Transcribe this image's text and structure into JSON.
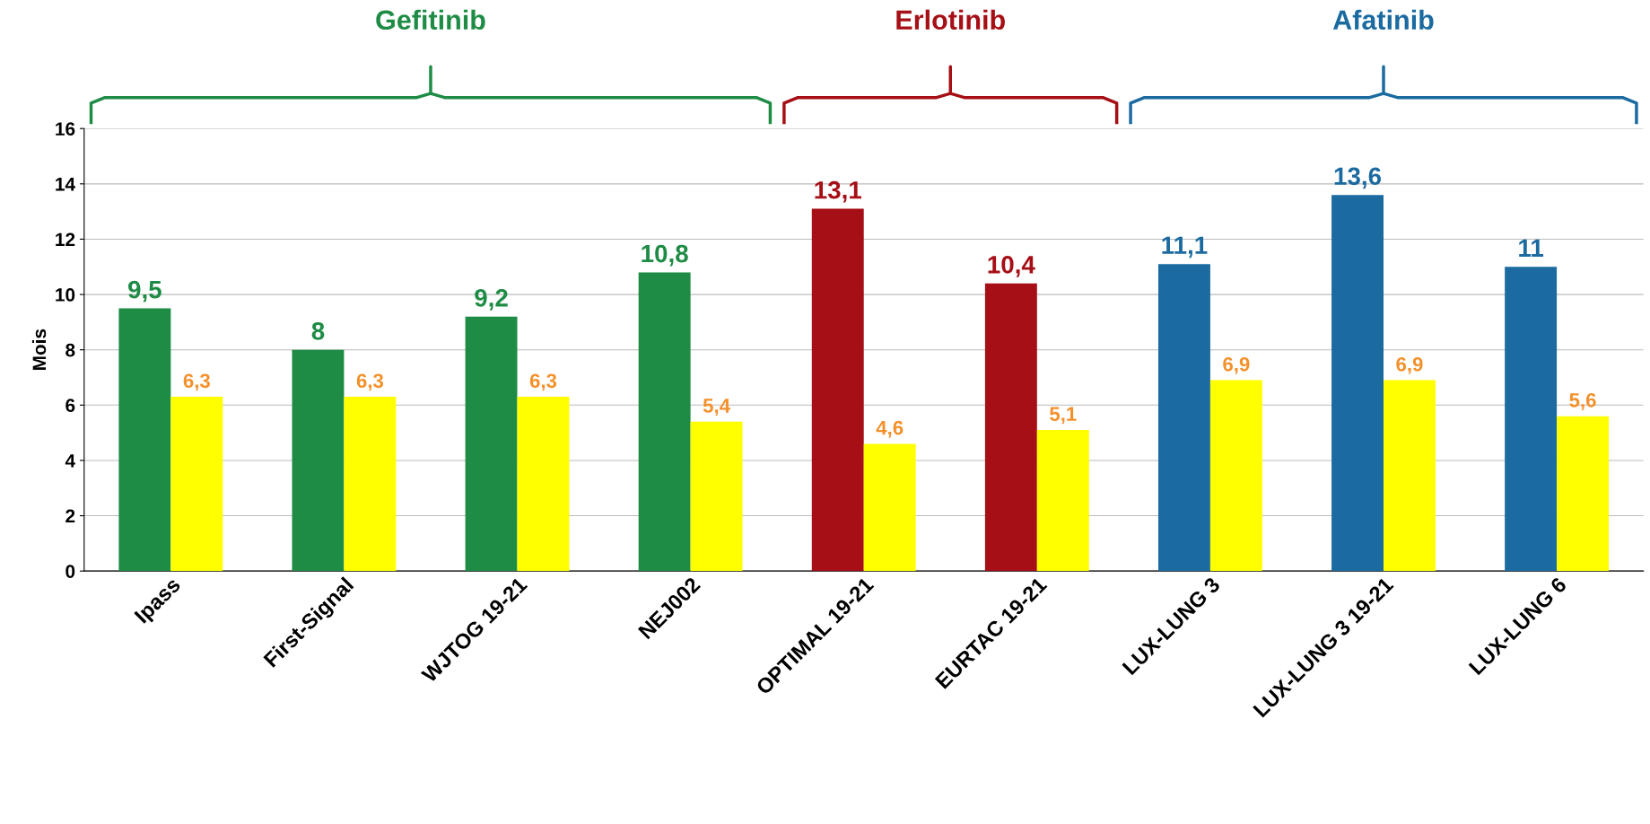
{
  "chart_data": {
    "type": "bar",
    "ylabel": "Mois",
    "categories": [
      "Ipass",
      "First-Signal",
      "WJTOG 19-21",
      "NEJ002",
      "OPTIMAL 19-21",
      "EURTAC 19-21",
      "LUX-LUNG 3",
      "LUX-LUNG 3 19-21",
      "LUX-LUNG 6"
    ],
    "series": [
      {
        "colors": [
          "#1e8c45",
          "#1e8c45",
          "#1e8c45",
          "#1e8c45",
          "#a50f15",
          "#a50f15",
          "#1b6aa0",
          "#1b6aa0",
          "#1b6aa0"
        ],
        "values": [
          9.5,
          8,
          9.2,
          10.8,
          13.1,
          10.4,
          11.1,
          13.6,
          11
        ],
        "value_labels": [
          "9,5",
          "8",
          "9,2",
          "10,8",
          "13,1",
          "10,4",
          "11,1",
          "13,6",
          "11"
        ]
      },
      {
        "color": "#ffff00",
        "values": [
          6.3,
          6.3,
          6.3,
          5.4,
          4.6,
          5.1,
          6.9,
          6.9,
          5.6
        ],
        "value_labels": [
          "6,3",
          "6,3",
          "6,3",
          "5,4",
          "4,6",
          "5,1",
          "6,9",
          "6,9",
          "5,6"
        ]
      }
    ],
    "ylim": [
      0,
      16
    ],
    "yticks": [
      0,
      2,
      4,
      6,
      8,
      10,
      12,
      14,
      16
    ],
    "grid": "y",
    "legend": false,
    "annotations": [
      "Gefitinib",
      "Erlotinib",
      "Afatinib"
    ]
  }
}
